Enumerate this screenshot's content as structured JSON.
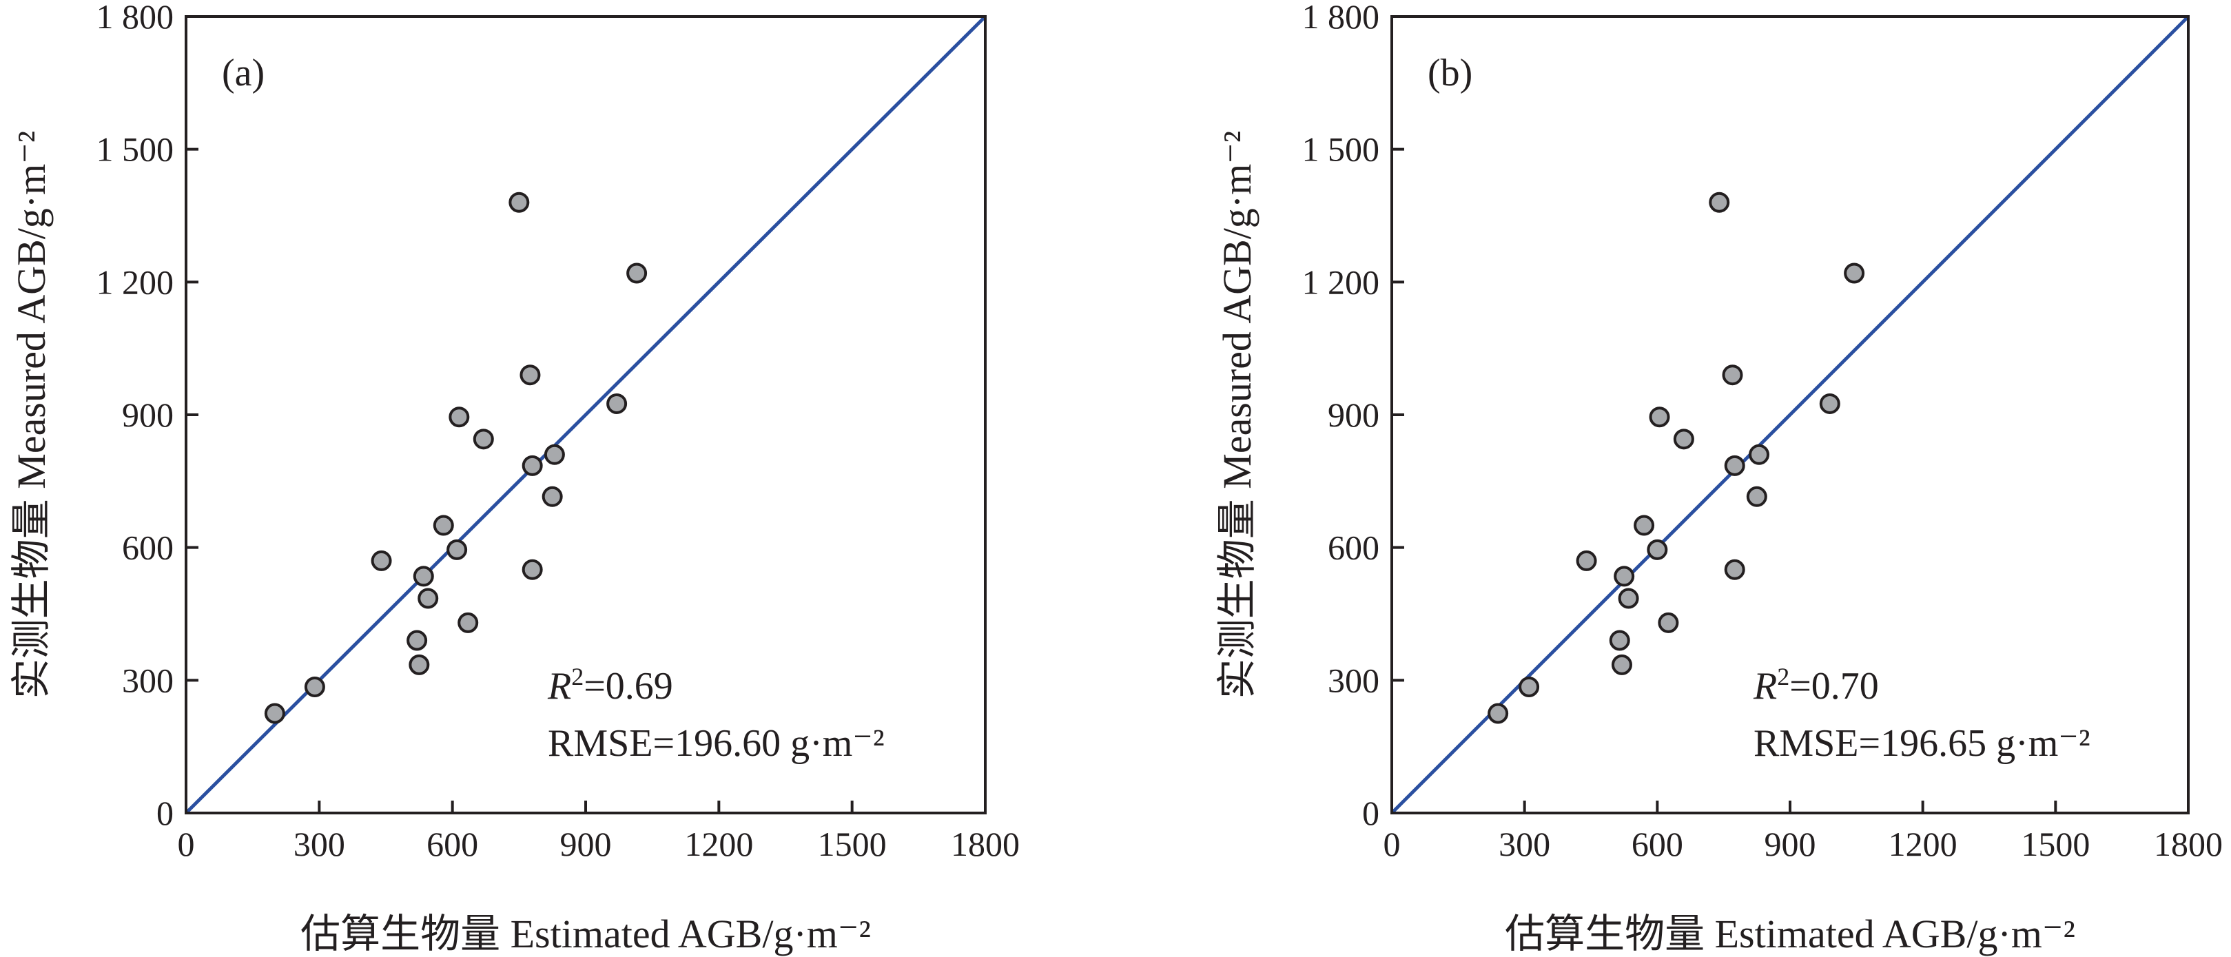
{
  "chart_data": [
    {
      "type": "scatter",
      "panel_label": "(a)",
      "xlabel": "估算生物量 Estimated AGB/g·m⁻²",
      "ylabel": "实测生物量 Measured AGB/g·m⁻²",
      "xlim": [
        0,
        1800
      ],
      "ylim": [
        0,
        1800
      ],
      "x_ticks": [
        "0",
        "300",
        "600",
        "900",
        "1200",
        "1500",
        "1800"
      ],
      "y_ticks": [
        "0",
        "300",
        "600",
        "900",
        "1 200",
        "1 500",
        "1 800"
      ],
      "r2_symbol": "R",
      "r2_sup": "2",
      "r2_value": "=0.69",
      "rmse_text": "RMSE=196.60 g·m⁻²",
      "reference_line": {
        "from": [
          0,
          0
        ],
        "to": [
          1800,
          1800
        ],
        "color": "#2a4fa0"
      },
      "marker_fill": "#a7a9ac",
      "marker_stroke": "#231f20",
      "x": [
        200,
        290,
        440,
        520,
        525,
        535,
        545,
        580,
        610,
        615,
        635,
        670,
        750,
        775,
        780,
        780,
        825,
        830,
        970,
        1015
      ],
      "y": [
        225,
        285,
        570,
        390,
        335,
        535,
        485,
        650,
        595,
        895,
        430,
        845,
        1380,
        990,
        785,
        550,
        715,
        810,
        925,
        1220
      ]
    },
    {
      "type": "scatter",
      "panel_label": "(b)",
      "xlabel": "估算生物量 Estimated AGB/g·m⁻²",
      "ylabel": "实测生物量 Measured AGB/g·m⁻²",
      "xlim": [
        0,
        1800
      ],
      "ylim": [
        0,
        1800
      ],
      "x_ticks": [
        "0",
        "300",
        "600",
        "900",
        "1200",
        "1500",
        "1800"
      ],
      "y_ticks": [
        "0",
        "300",
        "600",
        "900",
        "1 200",
        "1 500",
        "1 800"
      ],
      "r2_symbol": "R",
      "r2_sup": "2",
      "r2_value": "=0.70",
      "rmse_text": "RMSE=196.65 g·m⁻²",
      "reference_line": {
        "from": [
          0,
          0
        ],
        "to": [
          1800,
          1800
        ],
        "color": "#2a4fa0"
      },
      "marker_fill": "#a7a9ac",
      "marker_stroke": "#231f20",
      "x": [
        240,
        310,
        440,
        515,
        520,
        525,
        535,
        570,
        600,
        605,
        625,
        660,
        740,
        770,
        775,
        775,
        825,
        830,
        990,
        1045
      ],
      "y": [
        225,
        285,
        570,
        390,
        335,
        535,
        485,
        650,
        595,
        895,
        430,
        845,
        1380,
        990,
        785,
        550,
        715,
        810,
        925,
        1220
      ]
    }
  ]
}
